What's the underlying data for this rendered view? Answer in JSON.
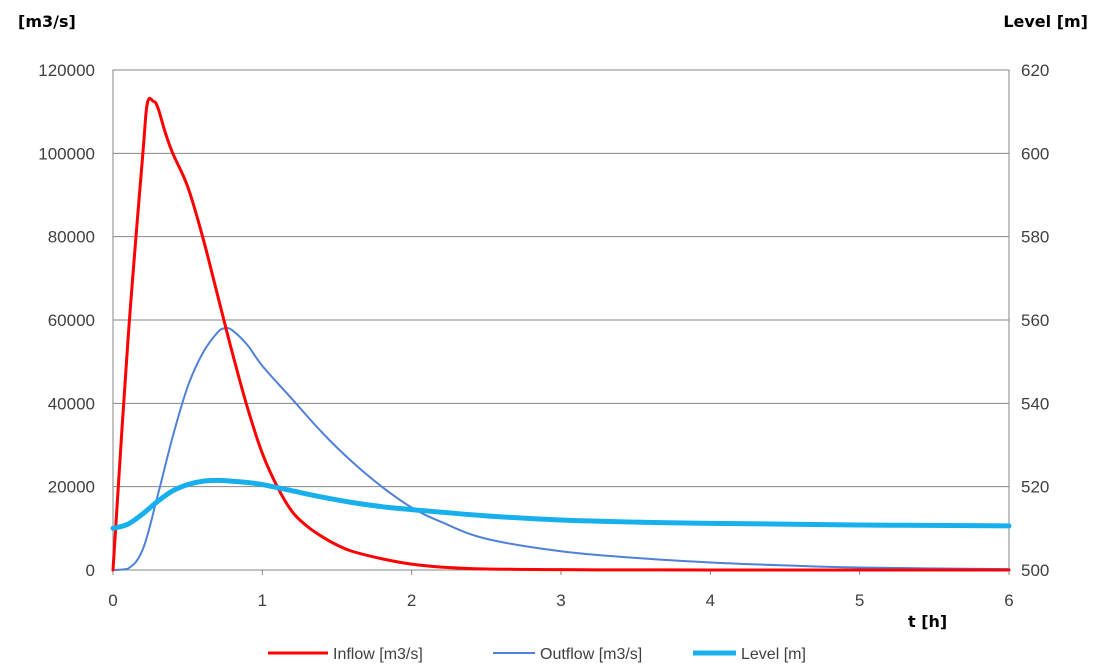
{
  "chart_data": {
    "type": "line",
    "ylabel_left": "[m3/s]",
    "ylabel_right": "Level [m]",
    "xlabel": "t [h]",
    "xlim": [
      0,
      6
    ],
    "ylim_left": [
      0,
      120000
    ],
    "ylim_right": [
      500,
      620
    ],
    "x_ticks": [
      "0",
      "1",
      "2",
      "3",
      "4",
      "5",
      "6"
    ],
    "y_ticks_left": [
      "0",
      "20000",
      "40000",
      "60000",
      "80000",
      "100000",
      "120000"
    ],
    "y_ticks_right": [
      "500",
      "520",
      "540",
      "560",
      "580",
      "600",
      "620"
    ],
    "grid": true,
    "legend_position": "bottom",
    "series": [
      {
        "name": "Inflow [m3/s]",
        "axis": "left",
        "color": "#ff0000",
        "width": 3,
        "x": [
          0,
          0.1,
          0.2,
          0.23,
          0.27,
          0.3,
          0.35,
          0.4,
          0.5,
          0.6,
          0.7,
          0.8,
          0.9,
          1.0,
          1.1,
          1.2,
          1.3,
          1.4,
          1.5,
          1.6,
          1.8,
          2.0,
          2.2,
          2.5,
          3.0,
          3.5,
          4.0,
          5.0,
          6.0
        ],
        "y": [
          0,
          55000,
          100000,
          112000,
          112500,
          111000,
          105000,
          100000,
          92000,
          80000,
          66000,
          52000,
          39000,
          28000,
          20000,
          14000,
          10500,
          8000,
          6000,
          4500,
          2700,
          1400,
          700,
          250,
          80,
          30,
          10,
          0,
          0
        ]
      },
      {
        "name": "Outflow [m3/s]",
        "axis": "left",
        "color": "#4f81d8",
        "width": 2,
        "x": [
          0,
          0.1,
          0.2,
          0.3,
          0.4,
          0.5,
          0.6,
          0.7,
          0.75,
          0.8,
          0.9,
          1.0,
          1.2,
          1.4,
          1.6,
          1.8,
          2.0,
          2.2,
          2.5,
          3.0,
          3.5,
          4.0,
          4.5,
          5.0,
          6.0
        ],
        "y": [
          0,
          300,
          5000,
          18000,
          32000,
          44000,
          52000,
          57000,
          58000,
          57500,
          54000,
          49000,
          41000,
          33000,
          26000,
          20000,
          15000,
          11500,
          7500,
          4500,
          2900,
          1800,
          1100,
          600,
          200
        ]
      },
      {
        "name": "Level [m]",
        "axis": "right",
        "color": "#17b0ec",
        "width": 5,
        "x": [
          0,
          0.1,
          0.2,
          0.3,
          0.4,
          0.5,
          0.6,
          0.7,
          0.8,
          0.9,
          1.0,
          1.2,
          1.4,
          1.6,
          1.8,
          2.0,
          2.5,
          3.0,
          3.5,
          4.0,
          5.0,
          6.0
        ],
        "y": [
          510,
          511,
          513.5,
          516.5,
          519,
          520.5,
          521.3,
          521.5,
          521.3,
          521,
          520.5,
          519,
          517.5,
          516.2,
          515.2,
          514.5,
          513,
          512,
          511.5,
          511.2,
          510.8,
          510.6
        ]
      }
    ]
  }
}
